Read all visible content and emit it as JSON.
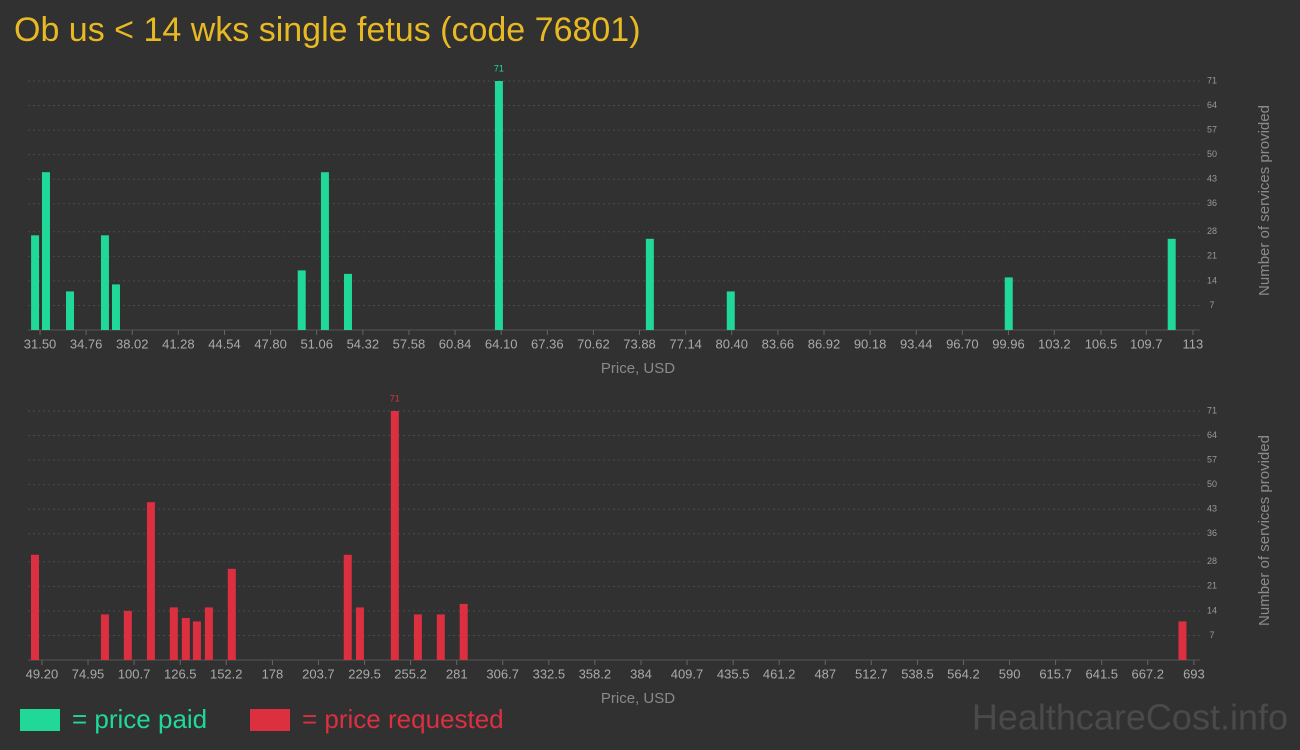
{
  "title": "Ob us < 14 wks single fetus (code 76801)",
  "watermark": "HealthcareCost.info",
  "chart_data": [
    {
      "type": "bar",
      "x_label": "Price, USD",
      "y_label": "Number of services provided",
      "series": [
        {
          "name": "= price paid",
          "color": "#20d898",
          "x": [
            31.15,
            31.92,
            33.62,
            36.09,
            36.87,
            50.0,
            51.64,
            53.27,
            63.94,
            74.61,
            80.33,
            99.98,
            111.5
          ],
          "values": [
            27,
            45,
            11,
            27,
            13,
            17,
            45,
            16,
            71,
            26,
            11,
            15,
            26
          ]
        }
      ],
      "xlim": [
        30.65,
        113.5
      ],
      "xticks": [
        {
          "value": 31.5,
          "label": "31.50"
        },
        34.76,
        38.02,
        41.28,
        44.54,
        {
          "value": 47.8,
          "label": "47.80"
        },
        51.06,
        54.32,
        57.58,
        60.84,
        {
          "value": 64.1,
          "label": "64.10"
        },
        67.36,
        70.62,
        73.88,
        77.14,
        {
          "value": 80.4,
          "label": "80.40"
        },
        83.66,
        86.92,
        90.18,
        93.44,
        {
          "value": 96.7,
          "label": "96.70"
        },
        99.96,
        103.2,
        106.5,
        109.7,
        113
      ],
      "ylim": [
        0,
        71
      ],
      "yticks": [
        7,
        14,
        21,
        28,
        36,
        43,
        50,
        57,
        64,
        71
      ],
      "grid": true,
      "label_max": true
    },
    {
      "type": "bar",
      "x_label": "Price, USD",
      "y_label": "Number of services provided",
      "series": [
        {
          "name": "= price requested",
          "color": "#dc3040",
          "x": [
            45.3,
            84.4,
            97.2,
            110.1,
            122.9,
            129.6,
            135.8,
            142.5,
            155.3,
            220.1,
            226.9,
            246.4,
            259.3,
            272.1,
            284.9,
            686.6
          ],
          "values": [
            30,
            13,
            14,
            45,
            15,
            12,
            11,
            15,
            26,
            30,
            15,
            71,
            13,
            13,
            16,
            11
          ]
        }
      ],
      "xlim": [
        41.4,
        696.4
      ],
      "xticks": [
        {
          "value": 49.2,
          "label": "49.20"
        },
        74.95,
        100.7,
        126.5,
        152.2,
        178,
        203.7,
        229.5,
        255.2,
        281,
        306.7,
        332.5,
        358.2,
        384,
        409.7,
        435.5,
        461.2,
        487,
        512.7,
        538.5,
        564.2,
        590,
        615.7,
        641.5,
        667.2,
        693
      ],
      "ylim": [
        0,
        71
      ],
      "yticks": [
        7,
        14,
        21,
        28,
        36,
        43,
        50,
        57,
        64,
        71
      ],
      "grid": true,
      "label_max": true
    }
  ]
}
